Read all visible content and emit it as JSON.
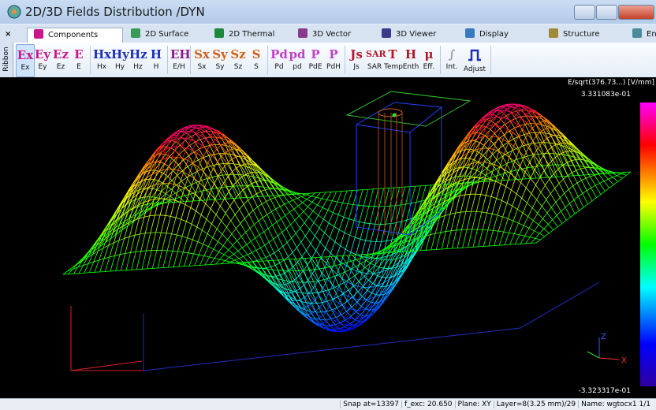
{
  "window": {
    "title": "2D/3D Fields Distribution /DYN"
  },
  "tabs": {
    "close": "×",
    "items": [
      "Components",
      "2D Surface",
      "2D Thermal",
      "3D Vector",
      "3D Viewer",
      "Display",
      "Structure",
      "Envelope"
    ]
  },
  "ribbon": {
    "label": "Ribbon",
    "groups": [
      {
        "color": "#c8168c",
        "items": [
          {
            "icon": "Ex",
            "label": "Ex"
          },
          {
            "icon": "Ey",
            "label": "Ey"
          },
          {
            "icon": "Ez",
            "label": "Ez"
          },
          {
            "icon": "E",
            "label": "E"
          }
        ]
      },
      {
        "color": "#1a2fbf",
        "items": [
          {
            "icon": "Hx",
            "label": "Hx"
          },
          {
            "icon": "Hy",
            "label": "Hy"
          },
          {
            "icon": "Hz",
            "label": "Hz"
          },
          {
            "icon": "H",
            "label": "H"
          }
        ]
      },
      {
        "color": "#8a1a8a",
        "items": [
          {
            "icon": "EH",
            "label": "E/H"
          }
        ]
      },
      {
        "color": "#d0601a",
        "items": [
          {
            "icon": "Sx",
            "label": "Sx"
          },
          {
            "icon": "Sy",
            "label": "Sy"
          },
          {
            "icon": "Sz",
            "label": "Sz"
          },
          {
            "icon": "S",
            "label": "S"
          }
        ]
      },
      {
        "color": "#c040c8",
        "items": [
          {
            "icon": "Pd",
            "label": "Pd"
          },
          {
            "icon": "pd",
            "label": "pd"
          },
          {
            "icon": "P",
            "label": "PdE"
          },
          {
            "icon": "P",
            "label": "PdH"
          }
        ]
      },
      {
        "color": "#b0182a",
        "items": [
          {
            "icon": "Js",
            "label": "Js"
          },
          {
            "icon": "SAR",
            "label": "SAR"
          },
          {
            "icon": "T",
            "label": "Temp"
          },
          {
            "icon": "H",
            "label": "Enth"
          },
          {
            "icon": "μ",
            "label": "Eff."
          }
        ]
      },
      {
        "color": "#999999",
        "items": [
          {
            "icon": "∫",
            "label": "Int."
          },
          {
            "label": "Adjust"
          }
        ]
      }
    ]
  },
  "plot": {
    "legend_title": "E/sqrt(376.73...) [V/mm]",
    "max": "3.331083e-01",
    "min": "-3.323317e-01",
    "axis_z": "Z",
    "axis_x": "X"
  },
  "status": [
    "Snap at=13397",
    "f_exc: 20.650",
    "Plane: XY",
    "Layer=8(3.25 mm)/29",
    "Name: wgtocx1 1/1"
  ]
}
